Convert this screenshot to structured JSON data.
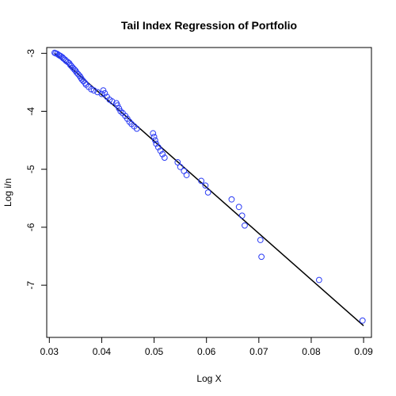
{
  "chart_data": {
    "type": "scatter",
    "title": "Tail Index Regression of Portfolio",
    "xlabel": "Log X",
    "ylabel": "Log i/n",
    "xlim": [
      0.0295,
      0.0915
    ],
    "ylim": [
      -7.9,
      -2.9
    ],
    "x_ticks": [
      0.03,
      0.04,
      0.05,
      0.06,
      0.07,
      0.08,
      0.09
    ],
    "x_tick_labels": [
      "0.03",
      "0.04",
      "0.05",
      "0.06",
      "0.07",
      "0.08",
      "0.09"
    ],
    "y_ticks": [
      -3,
      -4,
      -5,
      -6,
      -7
    ],
    "y_tick_labels": [
      "-3",
      "-4",
      "-5",
      "-6",
      "-7"
    ],
    "grid": false,
    "point_style": "open-circle",
    "point_color": "#2b3cf5",
    "line_color": "#000000",
    "fit_line": {
      "x": [
        0.031,
        0.09
      ],
      "y": [
        -3.0,
        -7.7
      ]
    },
    "points": [
      [
        0.031,
        -2.99
      ],
      [
        0.0312,
        -3.0
      ],
      [
        0.0315,
        -3.01
      ],
      [
        0.0318,
        -3.03
      ],
      [
        0.032,
        -3.04
      ],
      [
        0.0322,
        -3.05
      ],
      [
        0.0325,
        -3.07
      ],
      [
        0.0327,
        -3.09
      ],
      [
        0.033,
        -3.11
      ],
      [
        0.0332,
        -3.13
      ],
      [
        0.0335,
        -3.15
      ],
      [
        0.0338,
        -3.17
      ],
      [
        0.034,
        -3.2
      ],
      [
        0.0342,
        -3.22
      ],
      [
        0.0345,
        -3.25
      ],
      [
        0.0348,
        -3.28
      ],
      [
        0.035,
        -3.3
      ],
      [
        0.0352,
        -3.33
      ],
      [
        0.0355,
        -3.36
      ],
      [
        0.0358,
        -3.39
      ],
      [
        0.036,
        -3.42
      ],
      [
        0.0362,
        -3.45
      ],
      [
        0.0365,
        -3.48
      ],
      [
        0.0368,
        -3.51
      ],
      [
        0.037,
        -3.54
      ],
      [
        0.0375,
        -3.58
      ],
      [
        0.038,
        -3.62
      ],
      [
        0.0385,
        -3.64
      ],
      [
        0.0392,
        -3.67
      ],
      [
        0.04,
        -3.7
      ],
      [
        0.0403,
        -3.64
      ],
      [
        0.0406,
        -3.69
      ],
      [
        0.041,
        -3.75
      ],
      [
        0.0415,
        -3.8
      ],
      [
        0.042,
        -3.83
      ],
      [
        0.0428,
        -3.86
      ],
      [
        0.043,
        -3.9
      ],
      [
        0.0433,
        -3.95
      ],
      [
        0.0436,
        -4.0
      ],
      [
        0.044,
        -4.03
      ],
      [
        0.0445,
        -4.08
      ],
      [
        0.0449,
        -4.13
      ],
      [
        0.0453,
        -4.18
      ],
      [
        0.0457,
        -4.22
      ],
      [
        0.0462,
        -4.26
      ],
      [
        0.0467,
        -4.3
      ],
      [
        0.0498,
        -4.38
      ],
      [
        0.05,
        -4.44
      ],
      [
        0.0502,
        -4.5
      ],
      [
        0.0504,
        -4.56
      ],
      [
        0.0508,
        -4.62
      ],
      [
        0.0512,
        -4.68
      ],
      [
        0.0516,
        -4.74
      ],
      [
        0.052,
        -4.8
      ],
      [
        0.0545,
        -4.88
      ],
      [
        0.055,
        -4.96
      ],
      [
        0.0557,
        -5.03
      ],
      [
        0.0562,
        -5.1
      ],
      [
        0.059,
        -5.2
      ],
      [
        0.0598,
        -5.28
      ],
      [
        0.0603,
        -5.4
      ],
      [
        0.0648,
        -5.52
      ],
      [
        0.0662,
        -5.65
      ],
      [
        0.0668,
        -5.8
      ],
      [
        0.0673,
        -5.97
      ],
      [
        0.0703,
        -6.22
      ],
      [
        0.0705,
        -6.51
      ],
      [
        0.0815,
        -6.91
      ],
      [
        0.0898,
        -7.61
      ]
    ]
  }
}
